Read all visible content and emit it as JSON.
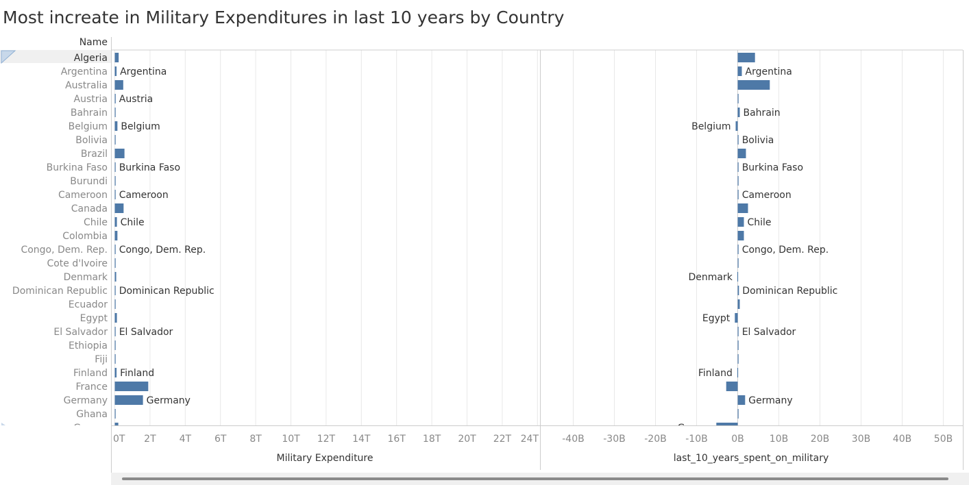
{
  "title": "Most increate in Military Expenditures in last 10 years by Country",
  "header": {
    "row_label": "Name"
  },
  "colors": {
    "bar": "#4e79a7",
    "highlight": "#f0f0f0",
    "axis_text": "#888888",
    "grid": "#e8e8e8"
  },
  "chart_data": [
    {
      "type": "bar",
      "orientation": "horizontal",
      "xlabel": "Military Expenditure",
      "xlim": [
        0,
        24
      ],
      "x_unit": "T",
      "ticks": [
        "0T",
        "2T",
        "4T",
        "6T",
        "8T",
        "10T",
        "12T",
        "14T",
        "16T",
        "18T",
        "20T",
        "22T",
        "24T"
      ],
      "categories": [
        "Algeria",
        "Argentina",
        "Australia",
        "Austria",
        "Bahrain",
        "Belgium",
        "Bolivia",
        "Brazil",
        "Burkina Faso",
        "Burundi",
        "Cameroon",
        "Canada",
        "Chile",
        "Colombia",
        "Congo, Dem. Rep.",
        "Cote d'Ivoire",
        "Denmark",
        "Dominican Republic",
        "Ecuador",
        "Egypt",
        "El Salvador",
        "Ethiopia",
        "Fiji",
        "Finland",
        "France",
        "Germany",
        "Ghana",
        "Greece"
      ],
      "values": [
        0.22,
        0.1,
        0.48,
        0.05,
        0.02,
        0.15,
        0.02,
        0.55,
        0.01,
        0.01,
        0.02,
        0.5,
        0.12,
        0.15,
        0.03,
        0.02,
        0.08,
        0.03,
        0.02,
        0.12,
        0.03,
        0.02,
        0.01,
        0.1,
        1.9,
        1.6,
        0.03,
        0.2
      ],
      "labels": [
        "",
        "Argentina",
        "",
        "Austria",
        "",
        "Belgium",
        "",
        "",
        "Burkina Faso",
        "",
        "Cameroon",
        "",
        "Chile",
        "",
        "Congo, Dem. Rep.",
        "",
        "",
        "Dominican Republic",
        "",
        "",
        "El Salvador",
        "",
        "",
        "Finland",
        "",
        "Germany",
        "",
        ""
      ]
    },
    {
      "type": "bar",
      "orientation": "horizontal",
      "xlabel": "last_10_years_spent_on_military",
      "xlim": [
        -50,
        55
      ],
      "x_unit": "B",
      "ticks": [
        "-40B",
        "-30B",
        "-20B",
        "-10B",
        "0B",
        "10B",
        "20B",
        "30B",
        "40B",
        "50B"
      ],
      "categories": [
        "Algeria",
        "Argentina",
        "Australia",
        "Austria",
        "Bahrain",
        "Belgium",
        "Bolivia",
        "Brazil",
        "Burkina Faso",
        "Burundi",
        "Cameroon",
        "Canada",
        "Chile",
        "Colombia",
        "Congo, Dem. Rep.",
        "Cote d'Ivoire",
        "Denmark",
        "Dominican Republic",
        "Ecuador",
        "Egypt",
        "El Salvador",
        "Ethiopia",
        "Fiji",
        "Finland",
        "France",
        "Germany",
        "Ghana",
        "Greece"
      ],
      "values": [
        4.2,
        1.0,
        7.8,
        0.05,
        0.5,
        -0.5,
        0.2,
        2.0,
        0.1,
        0.05,
        0.1,
        2.5,
        1.5,
        1.5,
        0.1,
        0.1,
        -0.1,
        0.3,
        0.5,
        -0.7,
        0.1,
        0.1,
        0.05,
        -0.1,
        -2.8,
        1.8,
        0.1,
        -5.2
      ],
      "labels": [
        "",
        "Argentina",
        "",
        "",
        "Bahrain",
        "Belgium",
        "Bolivia",
        "",
        "Burkina Faso",
        "",
        "Cameroon",
        "",
        "Chile",
        "",
        "Congo, Dem. Rep.",
        "",
        "Denmark",
        "Dominican Republic",
        "",
        "Egypt",
        "El Salvador",
        "",
        "",
        "Finland",
        "",
        "Germany",
        "",
        "Greece"
      ]
    }
  ]
}
